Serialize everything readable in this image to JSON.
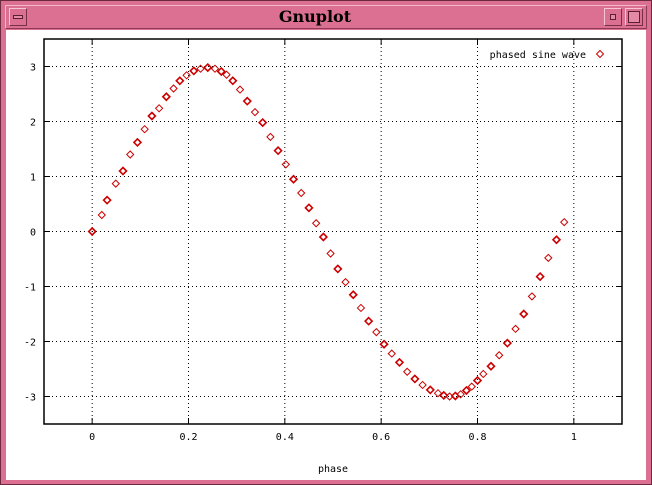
{
  "window": {
    "title": "Gnuplot"
  },
  "chart_data": {
    "type": "scatter",
    "title": "",
    "xlabel": "phase",
    "ylabel": "",
    "xlim": [
      -0.1,
      1.1
    ],
    "ylim": [
      -3.5,
      3.5
    ],
    "xticks": [
      0,
      0.2,
      0.4,
      0.6,
      0.8,
      1
    ],
    "yticks": [
      -3,
      -2,
      -1,
      0,
      1,
      2,
      3
    ],
    "grid": true,
    "legend": "top-right",
    "series": [
      {
        "name": "phased sine wave",
        "color": "#cc0000",
        "marker": "diamond",
        "x": [
          0.0,
          0.02,
          0.031,
          0.049,
          0.064,
          0.079,
          0.094,
          0.109,
          0.124,
          0.139,
          0.154,
          0.169,
          0.182,
          0.196,
          0.211,
          0.225,
          0.24,
          0.255,
          0.268,
          0.279,
          0.292,
          0.307,
          0.322,
          0.338,
          0.354,
          0.37,
          0.386,
          0.402,
          0.418,
          0.434,
          0.45,
          0.465,
          0.48,
          0.495,
          0.51,
          0.526,
          0.542,
          0.558,
          0.574,
          0.59,
          0.606,
          0.622,
          0.638,
          0.654,
          0.67,
          0.686,
          0.702,
          0.718,
          0.73,
          0.742,
          0.754,
          0.765,
          0.777,
          0.788,
          0.8,
          0.812,
          0.828,
          0.845,
          0.862,
          0.879,
          0.896,
          0.913,
          0.93,
          0.947,
          0.964,
          0.98
        ],
        "y": [
          0.0,
          0.3,
          0.57,
          0.87,
          1.1,
          1.4,
          1.62,
          1.86,
          2.1,
          2.24,
          2.45,
          2.6,
          2.74,
          2.84,
          2.92,
          2.96,
          2.98,
          2.96,
          2.91,
          2.85,
          2.74,
          2.58,
          2.37,
          2.17,
          1.98,
          1.72,
          1.47,
          1.22,
          0.95,
          0.7,
          0.43,
          0.15,
          -0.1,
          -0.4,
          -0.68,
          -0.92,
          -1.15,
          -1.39,
          -1.63,
          -1.83,
          -2.05,
          -2.22,
          -2.38,
          -2.55,
          -2.68,
          -2.79,
          -2.88,
          -2.94,
          -2.98,
          -3.0,
          -2.99,
          -2.96,
          -2.89,
          -2.82,
          -2.71,
          -2.59,
          -2.45,
          -2.25,
          -2.03,
          -1.77,
          -1.5,
          -1.18,
          -0.82,
          -0.48,
          -0.15,
          0.17
        ]
      }
    ]
  }
}
